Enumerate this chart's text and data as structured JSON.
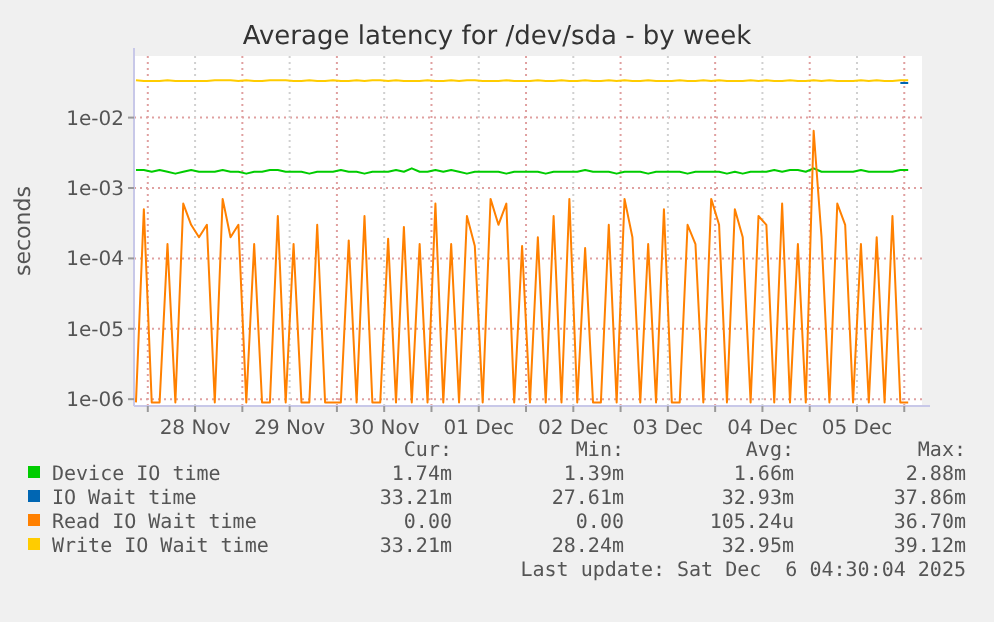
{
  "chart_data": {
    "type": "line",
    "title": "Average latency for /dev/sda - by week",
    "ylabel": "seconds",
    "log": "y",
    "grid": true,
    "legend": "bottom",
    "marker": "none",
    "line_style": "solid",
    "x": [
      "2025-11-27T21:00",
      "2025-11-27T23:00",
      "2025-11-28T01:00",
      "2025-11-28T03:00",
      "2025-11-28T05:00",
      "2025-11-28T07:00",
      "2025-11-28T09:00",
      "2025-11-28T11:00",
      "2025-11-28T13:00",
      "2025-11-28T15:00",
      "2025-11-28T17:00",
      "2025-11-28T19:00",
      "2025-11-28T21:00",
      "2025-11-28T23:00",
      "2025-11-29T01:00",
      "2025-11-29T03:00",
      "2025-11-29T05:00",
      "2025-11-29T07:00",
      "2025-11-29T09:00",
      "2025-11-29T11:00",
      "2025-11-29T13:00",
      "2025-11-29T15:00",
      "2025-11-29T17:00",
      "2025-11-29T19:00",
      "2025-11-29T21:00",
      "2025-11-29T23:00",
      "2025-11-30T01:00",
      "2025-11-30T03:00",
      "2025-11-30T05:00",
      "2025-11-30T07:00",
      "2025-11-30T09:00",
      "2025-11-30T11:00",
      "2025-11-30T13:00",
      "2025-11-30T15:00",
      "2025-11-30T17:00",
      "2025-11-30T19:00",
      "2025-11-30T21:00",
      "2025-11-30T23:00",
      "2025-12-01T01:00",
      "2025-12-01T03:00",
      "2025-12-01T05:00",
      "2025-12-01T07:00",
      "2025-12-01T09:00",
      "2025-12-01T11:00",
      "2025-12-01T13:00",
      "2025-12-01T15:00",
      "2025-12-01T17:00",
      "2025-12-01T19:00",
      "2025-12-01T21:00",
      "2025-12-01T23:00",
      "2025-12-02T01:00",
      "2025-12-02T03:00",
      "2025-12-02T05:00",
      "2025-12-02T07:00",
      "2025-12-02T09:00",
      "2025-12-02T11:00",
      "2025-12-02T13:00",
      "2025-12-02T15:00",
      "2025-12-02T17:00",
      "2025-12-02T19:00",
      "2025-12-02T21:00",
      "2025-12-02T23:00",
      "2025-12-03T01:00",
      "2025-12-03T03:00",
      "2025-12-03T05:00",
      "2025-12-03T07:00",
      "2025-12-03T09:00",
      "2025-12-03T11:00",
      "2025-12-03T13:00",
      "2025-12-03T15:00",
      "2025-12-03T17:00",
      "2025-12-03T19:00",
      "2025-12-03T21:00",
      "2025-12-03T23:00",
      "2025-12-04T01:00",
      "2025-12-04T03:00",
      "2025-12-04T05:00",
      "2025-12-04T07:00",
      "2025-12-04T09:00",
      "2025-12-04T11:00",
      "2025-12-04T13:00",
      "2025-12-04T15:00",
      "2025-12-04T17:00",
      "2025-12-04T19:00",
      "2025-12-04T21:00",
      "2025-12-04T23:00",
      "2025-12-05T01:00",
      "2025-12-05T03:00",
      "2025-12-05T05:00",
      "2025-12-05T07:00",
      "2025-12-05T09:00",
      "2025-12-05T11:00",
      "2025-12-05T13:00",
      "2025-12-05T15:00",
      "2025-12-05T17:00",
      "2025-12-05T19:00",
      "2025-12-05T21:00",
      "2025-12-05T23:00",
      "2025-12-06T01:00"
    ],
    "xlim": [
      "2025-11-27T20:30",
      "2025-12-06T04:30"
    ],
    "xticks": [
      {
        "value": "2025-11-28T00:00",
        "label": null
      },
      {
        "value": "2025-11-28T12:00",
        "label": "28 Nov"
      },
      {
        "value": "2025-11-29T00:00",
        "label": null
      },
      {
        "value": "2025-11-29T12:00",
        "label": "29 Nov"
      },
      {
        "value": "2025-11-30T00:00",
        "label": null
      },
      {
        "value": "2025-11-30T12:00",
        "label": "30 Nov"
      },
      {
        "value": "2025-12-01T00:00",
        "label": null
      },
      {
        "value": "2025-12-01T12:00",
        "label": "01 Dec"
      },
      {
        "value": "2025-12-02T00:00",
        "label": null
      },
      {
        "value": "2025-12-02T12:00",
        "label": "02 Dec"
      },
      {
        "value": "2025-12-03T00:00",
        "label": null
      },
      {
        "value": "2025-12-03T12:00",
        "label": "03 Dec"
      },
      {
        "value": "2025-12-04T00:00",
        "label": null
      },
      {
        "value": "2025-12-04T12:00",
        "label": "04 Dec"
      },
      {
        "value": "2025-12-05T00:00",
        "label": null
      },
      {
        "value": "2025-12-05T12:00",
        "label": "05 Dec"
      },
      {
        "value": "2025-12-06T00:00",
        "label": null
      }
    ],
    "ylim": [
      8e-07,
      0.075
    ],
    "yticks": [
      {
        "value": 1e-06,
        "label": "1e-06"
      },
      {
        "value": 1e-05,
        "label": "1e-05"
      },
      {
        "value": 0.0001,
        "label": "1e-04"
      },
      {
        "value": 0.001,
        "label": "1e-03"
      },
      {
        "value": 0.01,
        "label": "1e-02"
      }
    ],
    "series": [
      {
        "name": "Device IO time",
        "color": "#00cc00",
        "values": [
          0.0018,
          0.0018,
          0.0017,
          0.0018,
          0.0017,
          0.0016,
          0.0017,
          0.0018,
          0.0017,
          0.0017,
          0.0017,
          0.0018,
          0.0017,
          0.0017,
          0.0016,
          0.0017,
          0.0017,
          0.0018,
          0.0018,
          0.0017,
          0.0017,
          0.0017,
          0.0016,
          0.0017,
          0.0017,
          0.0017,
          0.0018,
          0.0017,
          0.0017,
          0.0016,
          0.0017,
          0.0017,
          0.0017,
          0.0018,
          0.0017,
          0.0019,
          0.0017,
          0.0017,
          0.0018,
          0.0017,
          0.0018,
          0.0017,
          0.0016,
          0.0017,
          0.0017,
          0.0017,
          0.0017,
          0.0016,
          0.0017,
          0.0017,
          0.0017,
          0.0017,
          0.0016,
          0.0017,
          0.0017,
          0.0017,
          0.0017,
          0.0018,
          0.0017,
          0.0017,
          0.0017,
          0.0016,
          0.0017,
          0.0017,
          0.0017,
          0.0016,
          0.0017,
          0.0017,
          0.0017,
          0.0017,
          0.0016,
          0.0017,
          0.0017,
          0.0017,
          0.0017,
          0.0016,
          0.0017,
          0.0016,
          0.0017,
          0.0017,
          0.0017,
          0.0018,
          0.0017,
          0.0018,
          0.0018,
          0.0017,
          0.0019,
          0.0017,
          0.0017,
          0.0017,
          0.0017,
          0.0017,
          0.0018,
          0.0017,
          0.0017,
          0.0017,
          0.0017,
          0.0018,
          0.0018
        ]
      },
      {
        "name": "IO Wait time",
        "color": "#0066b3",
        "values": [
          null,
          null,
          null,
          null,
          null,
          null,
          null,
          null,
          null,
          null,
          null,
          null,
          null,
          null,
          null,
          null,
          null,
          null,
          null,
          null,
          null,
          null,
          null,
          null,
          null,
          null,
          null,
          null,
          null,
          null,
          null,
          null,
          null,
          null,
          null,
          null,
          null,
          null,
          null,
          null,
          null,
          null,
          null,
          null,
          null,
          null,
          null,
          null,
          null,
          null,
          null,
          null,
          null,
          null,
          null,
          null,
          null,
          null,
          null,
          null,
          null,
          null,
          null,
          null,
          null,
          null,
          null,
          null,
          null,
          null,
          null,
          null,
          null,
          null,
          null,
          null,
          null,
          null,
          null,
          null,
          null,
          null,
          null,
          null,
          null,
          null,
          null,
          null,
          null,
          null,
          null,
          null,
          null,
          null,
          null,
          null,
          null,
          0.031,
          0.031
        ]
      },
      {
        "name": "Read IO Wait time",
        "color": "#ff8000",
        "values": [
          9e-07,
          0.0005,
          9e-07,
          9e-07,
          0.00016,
          9e-07,
          0.0006,
          0.0003,
          0.0002,
          0.0003,
          9e-07,
          0.0007,
          0.0002,
          0.0003,
          9e-07,
          0.00016,
          9e-07,
          9e-07,
          0.0004,
          9e-07,
          0.00016,
          9e-07,
          9e-07,
          0.0003,
          9e-07,
          9e-07,
          9e-07,
          0.00018,
          9e-07,
          0.0004,
          9e-07,
          9e-07,
          0.00019,
          9e-07,
          0.00028,
          9e-07,
          0.00016,
          9e-07,
          0.0006,
          9e-07,
          0.00016,
          9e-07,
          0.0004,
          0.00015,
          9e-07,
          0.0007,
          0.0003,
          0.0006,
          9e-07,
          0.00015,
          9e-07,
          0.0002,
          9e-07,
          0.0004,
          9e-07,
          0.0007,
          9e-07,
          0.00014,
          9e-07,
          9e-07,
          0.0003,
          9e-07,
          0.0007,
          0.0002,
          9e-07,
          0.00016,
          9e-07,
          0.0005,
          9e-07,
          9e-07,
          0.0003,
          0.00016,
          9e-07,
          0.0007,
          0.0003,
          9e-07,
          0.0005,
          0.0002,
          9e-07,
          0.0004,
          0.0003,
          9e-07,
          0.0006,
          9e-07,
          0.00016,
          9e-07,
          0.0065,
          0.0002,
          9e-07,
          0.0006,
          0.0003,
          9e-07,
          0.00016,
          9e-07,
          0.0002,
          9e-07,
          0.0004,
          9e-07,
          9e-07
        ]
      },
      {
        "name": "Write IO Wait time",
        "color": "#ffcc00",
        "values": [
          0.034,
          0.033,
          0.033,
          0.033,
          0.034,
          0.033,
          0.033,
          0.033,
          0.033,
          0.033,
          0.034,
          0.034,
          0.034,
          0.033,
          0.034,
          0.033,
          0.033,
          0.034,
          0.034,
          0.034,
          0.033,
          0.033,
          0.034,
          0.033,
          0.033,
          0.034,
          0.033,
          0.033,
          0.034,
          0.033,
          0.034,
          0.034,
          0.033,
          0.034,
          0.033,
          0.033,
          0.033,
          0.034,
          0.033,
          0.033,
          0.034,
          0.033,
          0.034,
          0.034,
          0.033,
          0.033,
          0.033,
          0.034,
          0.033,
          0.033,
          0.033,
          0.034,
          0.033,
          0.033,
          0.034,
          0.033,
          0.033,
          0.034,
          0.033,
          0.033,
          0.034,
          0.033,
          0.034,
          0.033,
          0.033,
          0.034,
          0.033,
          0.033,
          0.033,
          0.034,
          0.033,
          0.033,
          0.034,
          0.033,
          0.034,
          0.033,
          0.033,
          0.033,
          0.034,
          0.033,
          0.034,
          0.033,
          0.033,
          0.034,
          0.033,
          0.033,
          0.034,
          0.033,
          0.034,
          0.033,
          0.033,
          0.033,
          0.034,
          0.033,
          0.034,
          0.033,
          0.033,
          0.034,
          0.034
        ]
      }
    ],
    "annotations": [
      "Cur:",
      "Min:",
      "Avg:",
      "Max:",
      "1.74m",
      "1.39m",
      "1.66m",
      "2.88m",
      "33.21m",
      "27.61m",
      "32.93m",
      "37.86m",
      "0.00",
      "0.00",
      "105.24u",
      "36.70m",
      "33.21m",
      "28.24m",
      "32.95m",
      "39.12m",
      "Last update: Sat Dec  6 04:30:04 2025"
    ]
  }
}
